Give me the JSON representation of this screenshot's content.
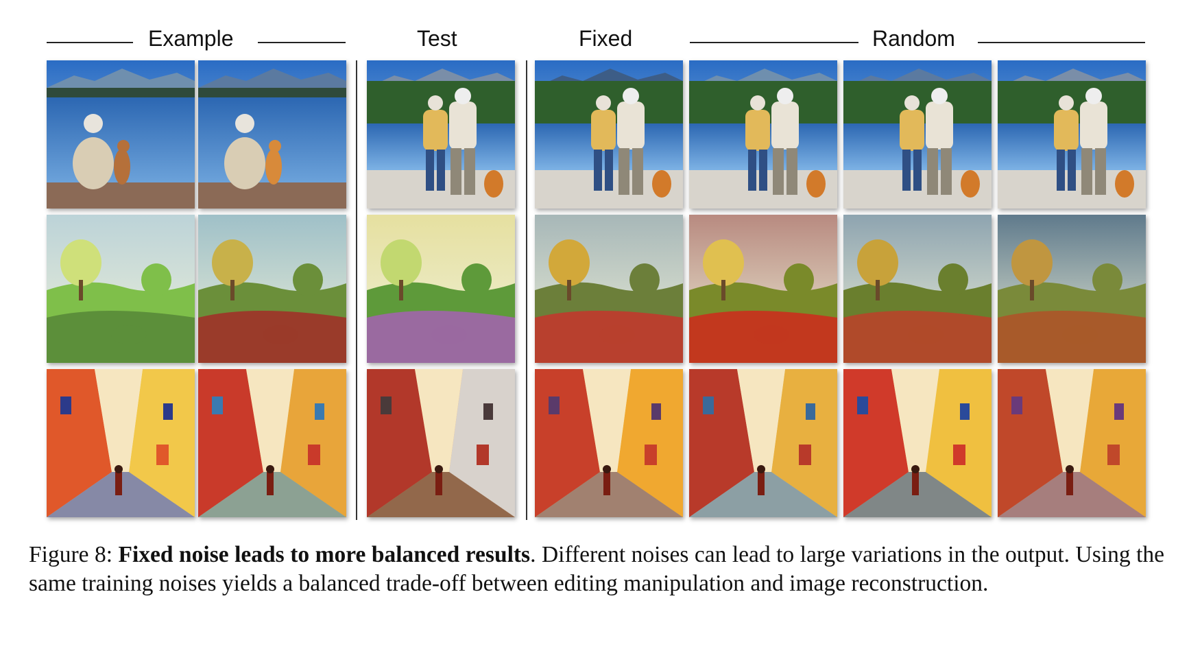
{
  "headers": {
    "example": "Example",
    "test": "Test",
    "fixed": "Fixed",
    "random": "Random"
  },
  "rows": [
    {
      "theme": "lake-couple-dog",
      "sky": "#3f7fc6",
      "ground": "#2e6fb6",
      "accent": "#e9e1d0"
    },
    {
      "theme": "garden-landscape",
      "sky": "#b9cfd6",
      "ground": "#6aa53b",
      "accent": "#8a5a36"
    },
    {
      "theme": "cubist-street",
      "sky": "#e8c04a",
      "ground": "#c2442a",
      "accent": "#2e3e8c"
    }
  ],
  "caption": {
    "figure_label": "Figure 8:",
    "bold_title": "Fixed noise leads to more balanced results",
    "text": ". Different noises can lead to large variations in the output. Using the same training noises yields a balanced trade-off between editing manipulation and image reconstruction."
  }
}
